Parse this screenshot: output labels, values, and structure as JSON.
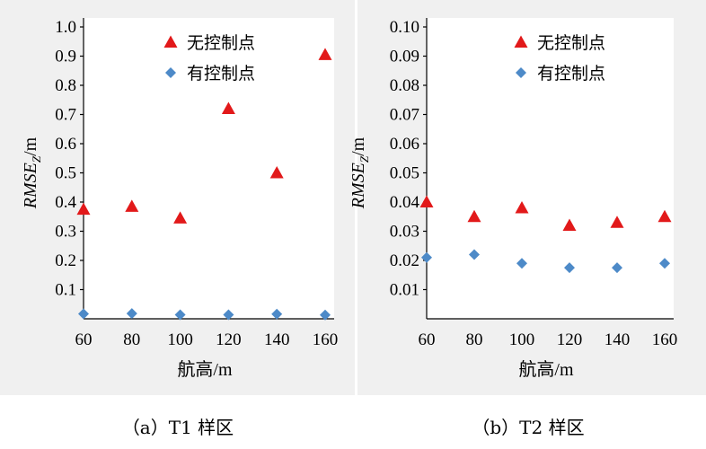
{
  "chart_data": [
    {
      "type": "scatter",
      "ylabel": "RMSEZ/m",
      "ylabel_main": "RMSE",
      "ylabel_sub": "Z",
      "ylabel_unit": "/m",
      "xlabel": "航高/m",
      "caption": "（a）T1 样区",
      "x_ticks": [
        "60",
        "80",
        "100",
        "120",
        "140",
        "160"
      ],
      "y_ticks": [
        "0.1",
        "0.2",
        "0.3",
        "0.4",
        "0.5",
        "0.6",
        "0.7",
        "0.8",
        "0.9",
        "1.0"
      ],
      "xlim": [
        60,
        160
      ],
      "ylim": [
        0,
        1.0
      ],
      "legend_position": "top-right",
      "series": [
        {
          "name": "无控制点",
          "marker": "triangle",
          "color": "#e2191a",
          "x": [
            60,
            80,
            100,
            120,
            140,
            160
          ],
          "y": [
            0.375,
            0.385,
            0.345,
            0.72,
            0.5,
            0.905
          ]
        },
        {
          "name": "有控制点",
          "marker": "diamond",
          "color": "#4d8ac8",
          "x": [
            60,
            80,
            100,
            120,
            140,
            160
          ],
          "y": [
            0.017,
            0.018,
            0.014,
            0.014,
            0.016,
            0.013
          ]
        }
      ]
    },
    {
      "type": "scatter",
      "ylabel": "RMSEZ/m",
      "ylabel_main": "RMSE",
      "ylabel_sub": "Z",
      "ylabel_unit": "/m",
      "xlabel": "航高/m",
      "caption": "（b）T2 样区",
      "x_ticks": [
        "60",
        "80",
        "100",
        "120",
        "140",
        "160"
      ],
      "y_ticks": [
        "0.01",
        "0.02",
        "0.03",
        "0.04",
        "0.05",
        "0.06",
        "0.07",
        "0.08",
        "0.09",
        "0.10"
      ],
      "xlim": [
        60,
        160
      ],
      "ylim": [
        0,
        0.1
      ],
      "legend_position": "top-right",
      "series": [
        {
          "name": "无控制点",
          "marker": "triangle",
          "color": "#e2191a",
          "x": [
            60,
            80,
            100,
            120,
            140,
            160
          ],
          "y": [
            0.04,
            0.035,
            0.038,
            0.032,
            0.033,
            0.035
          ]
        },
        {
          "name": "有控制点",
          "marker": "diamond",
          "color": "#4d8ac8",
          "x": [
            60,
            80,
            100,
            120,
            140,
            160
          ],
          "y": [
            0.021,
            0.022,
            0.019,
            0.0175,
            0.0175,
            0.019
          ]
        }
      ]
    }
  ]
}
